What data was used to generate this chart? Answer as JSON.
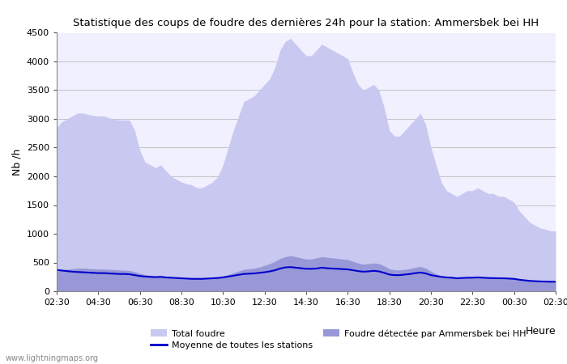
{
  "title": "Statistique des coups de foudre des dernières 24h pour la station: Ammersbek bei HH",
  "ylabel": "Nb /h",
  "xlabel": "Heure",
  "watermark": "www.lightningmaps.org",
  "legend": {
    "total_foudre_color": "#c8c8f0",
    "station_foudre_color": "#9898d8",
    "moyenne_color": "#0000cc",
    "total_label": "Total foudre",
    "station_label": "Foudre détectée par Ammersbek bei HH",
    "moyenne_label": "Moyenne de toutes les stations"
  },
  "x_ticks": [
    "02:30",
    "04:30",
    "06:30",
    "08:30",
    "10:30",
    "12:30",
    "14:30",
    "16:30",
    "18:30",
    "20:30",
    "22:30",
    "00:30",
    "02:30"
  ],
  "ylim": [
    0,
    4500
  ],
  "yticks": [
    0,
    500,
    1000,
    1500,
    2000,
    2500,
    3000,
    3500,
    4000,
    4500
  ],
  "background_color": "#ffffff",
  "plot_background_color": "#f0f0ff",
  "grid_color": "#bbbbbb",
  "n_points": 97,
  "total_foudre": [
    2850,
    2950,
    3000,
    3050,
    3100,
    3100,
    3080,
    3060,
    3050,
    3050,
    3020,
    3000,
    2980,
    2980,
    2980,
    2800,
    2450,
    2250,
    2200,
    2150,
    2200,
    2100,
    2000,
    1950,
    1900,
    1870,
    1850,
    1800,
    1800,
    1850,
    1900,
    2000,
    2200,
    2500,
    2800,
    3050,
    3300,
    3350,
    3400,
    3500,
    3600,
    3700,
    3900,
    4200,
    4350,
    4400,
    4300,
    4200,
    4100,
    4100,
    4200,
    4300,
    4250,
    4200,
    4150,
    4100,
    4050,
    3800,
    3600,
    3500,
    3550,
    3600,
    3500,
    3200,
    2800,
    2700,
    2700,
    2800,
    2900,
    3000,
    3100,
    2900,
    2500,
    2200,
    1900,
    1750,
    1700,
    1650,
    1700,
    1750,
    1750,
    1800,
    1750,
    1700,
    1700,
    1650,
    1650,
    1600,
    1550,
    1400,
    1300,
    1200,
    1150,
    1100,
    1080,
    1050,
    1050
  ],
  "station_foudre": [
    350,
    370,
    380,
    390,
    400,
    400,
    395,
    390,
    385,
    385,
    380,
    375,
    370,
    365,
    360,
    340,
    310,
    290,
    275,
    265,
    270,
    260,
    250,
    240,
    235,
    230,
    225,
    220,
    220,
    225,
    230,
    245,
    265,
    290,
    320,
    350,
    380,
    390,
    400,
    420,
    450,
    480,
    520,
    570,
    600,
    620,
    600,
    580,
    560,
    560,
    580,
    600,
    590,
    580,
    570,
    560,
    550,
    520,
    490,
    470,
    480,
    490,
    480,
    440,
    390,
    370,
    370,
    380,
    395,
    415,
    430,
    400,
    350,
    300,
    260,
    240,
    235,
    225,
    230,
    240,
    240,
    245,
    240,
    235,
    230,
    225,
    225,
    220,
    215,
    200,
    190,
    180,
    175,
    170,
    168,
    165,
    165
  ],
  "moyenne": [
    370,
    360,
    350,
    340,
    335,
    330,
    325,
    320,
    315,
    315,
    310,
    305,
    300,
    300,
    295,
    280,
    265,
    255,
    250,
    245,
    250,
    240,
    235,
    230,
    225,
    220,
    215,
    215,
    215,
    220,
    225,
    230,
    240,
    255,
    270,
    285,
    300,
    305,
    310,
    320,
    330,
    345,
    365,
    395,
    415,
    420,
    410,
    400,
    390,
    390,
    395,
    410,
    400,
    395,
    390,
    385,
    380,
    365,
    350,
    340,
    345,
    355,
    345,
    320,
    290,
    280,
    280,
    290,
    300,
    315,
    325,
    310,
    280,
    265,
    250,
    240,
    235,
    225,
    230,
    235,
    235,
    240,
    235,
    230,
    228,
    225,
    225,
    220,
    215,
    200,
    190,
    180,
    175,
    170,
    168,
    165,
    165
  ]
}
